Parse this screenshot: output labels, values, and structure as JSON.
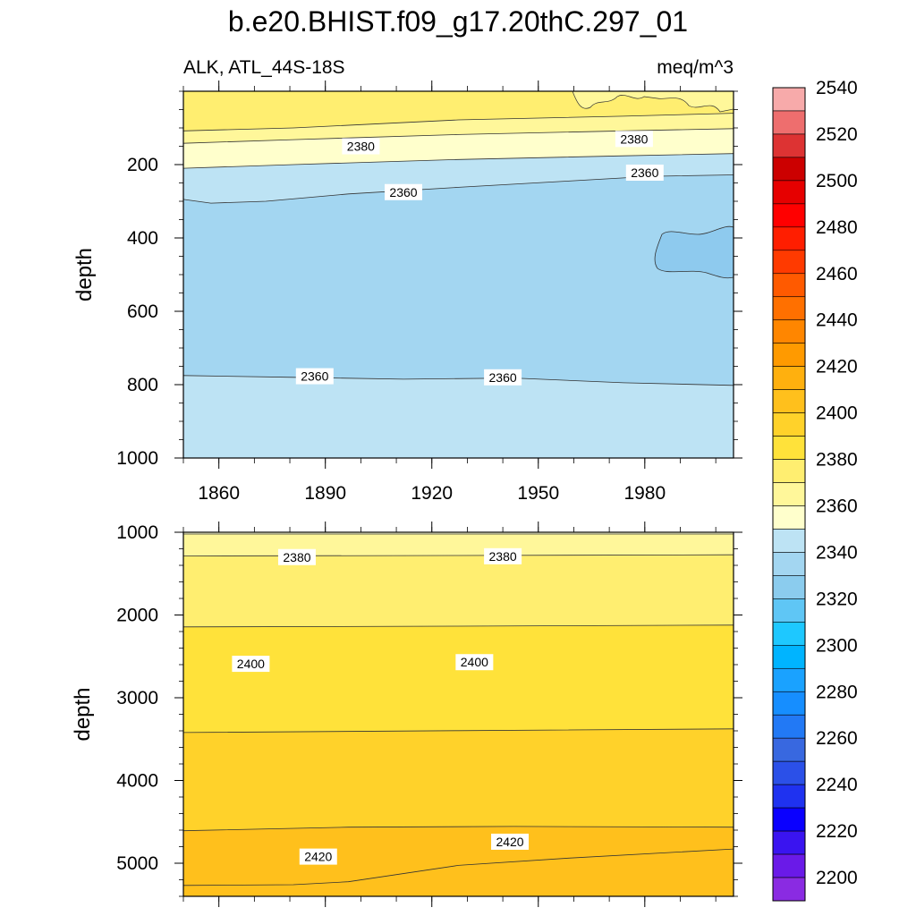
{
  "chart_data": {
    "type": "contour",
    "title": "b.e20.BHIST.f09_g17.20thC.297_01",
    "subtitle_left": "ALK, ATL_44S-18S",
    "subtitle_right": "meq/m^3",
    "x_ticks": [
      "1860",
      "1890",
      "1920",
      "1950",
      "1980"
    ],
    "x_range": [
      1850,
      2005
    ],
    "panels": [
      {
        "name": "upper",
        "ylabel": "depth",
        "y_range": [
          0,
          1000
        ],
        "y_ticks": [
          "200",
          "400",
          "600",
          "800",
          "1000"
        ],
        "bands": [
          {
            "level": 2400,
            "color": "#FFEE70"
          },
          {
            "level": 2380,
            "color": "#FFF79A"
          },
          {
            "level": 2370,
            "color": "#FFFFCC"
          },
          {
            "level": 2360,
            "color": "#BDE3F4"
          },
          {
            "level": 2350,
            "color": "#A3D6F1"
          },
          {
            "level": 2360,
            "color": "#BDE3F4"
          }
        ],
        "contour_labels": [
          {
            "text": "2380",
            "x": 1900,
            "y": 150
          },
          {
            "text": "2380",
            "x": 1977,
            "y": 130
          },
          {
            "text": "2360",
            "x": 1912,
            "y": 275
          },
          {
            "text": "2360",
            "x": 1980,
            "y": 222
          },
          {
            "text": "2360",
            "x": 1887,
            "y": 777
          },
          {
            "text": "2360",
            "x": 1940,
            "y": 780
          }
        ]
      },
      {
        "name": "lower",
        "ylabel": "depth",
        "y_range": [
          1000,
          5400
        ],
        "y_ticks": [
          "1000",
          "2000",
          "3000",
          "4000",
          "5000"
        ],
        "bands": [
          {
            "level": 2370,
            "color": "#FFFFCC"
          },
          {
            "level": 2380,
            "color": "#FFF79A"
          },
          {
            "level": 2390,
            "color": "#FFEE70"
          },
          {
            "level": 2400,
            "color": "#FFE23A"
          },
          {
            "level": 2410,
            "color": "#FFD22A"
          },
          {
            "level": 2420,
            "color": "#FFC01C"
          }
        ],
        "contour_labels": [
          {
            "text": "2380",
            "x": 1882,
            "y": 1300
          },
          {
            "text": "2380",
            "x": 1940,
            "y": 1290
          },
          {
            "text": "2400",
            "x": 1869,
            "y": 2590
          },
          {
            "text": "2400",
            "x": 1932,
            "y": 2570
          },
          {
            "text": "2420",
            "x": 1888,
            "y": 4920
          },
          {
            "text": "2420",
            "x": 1942,
            "y": 4740
          }
        ]
      }
    ],
    "colorbar": {
      "labels": [
        "2200",
        "2220",
        "2240",
        "2260",
        "2280",
        "2300",
        "2320",
        "2340",
        "2360",
        "2380",
        "2400",
        "2420",
        "2440",
        "2460",
        "2480",
        "2500",
        "2520",
        "2540"
      ],
      "colors": [
        "#8A2BE2",
        "#6A1AE8",
        "#3A14F0",
        "#0A00FF",
        "#1F32F0",
        "#2B50E8",
        "#3868E0",
        "#2279F5",
        "#168EFF",
        "#1AA2FF",
        "#00B4FF",
        "#1EC8FF",
        "#5FC6F5",
        "#8BCCEE",
        "#A3D6F1",
        "#BDE3F4",
        "#FFFFCC",
        "#FFF79A",
        "#FFEE70",
        "#FFE23A",
        "#FFD22A",
        "#FFC01C",
        "#FFB00E",
        "#FF9A00",
        "#FF8600",
        "#FF7000",
        "#FF5A00",
        "#FF3A00",
        "#FF1E00",
        "#FF0000",
        "#E60000",
        "#CC0000",
        "#DD3333",
        "#EE6E6E",
        "#F7AAAA"
      ]
    }
  }
}
